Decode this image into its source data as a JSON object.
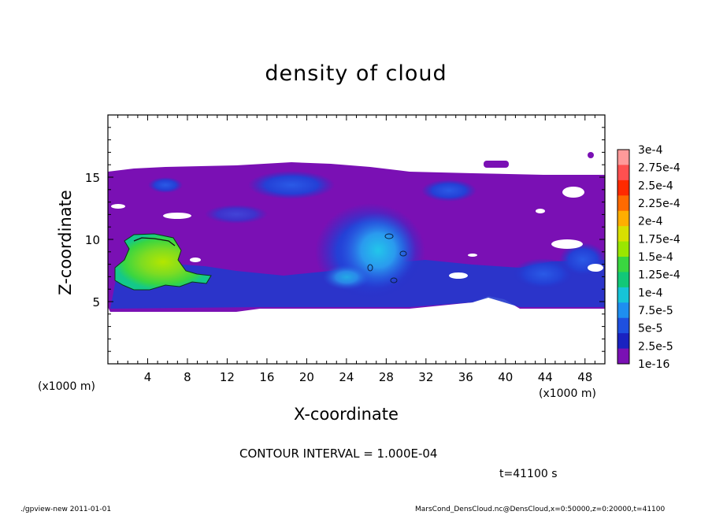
{
  "chart_data": {
    "type": "heatmap",
    "title": "density of cloud",
    "xlabel": "X-coordinate",
    "ylabel": "Z-coordinate",
    "x_unit_label": "(x1000 m)",
    "x_unit_label_right": "(x1000 m)",
    "xlim": [
      0,
      50
    ],
    "ylim": [
      0,
      20
    ],
    "x_ticks": [
      4,
      8,
      12,
      16,
      20,
      24,
      28,
      32,
      36,
      40,
      44,
      48
    ],
    "y_ticks": [
      5,
      10,
      15
    ],
    "colorbar": {
      "labels": [
        "3e-4",
        "2.75e-4",
        "2.5e-4",
        "2.25e-4",
        "2e-4",
        "1.75e-4",
        "1.5e-4",
        "1.25e-4",
        "1e-4",
        "7.5e-5",
        "5e-5",
        "2.5e-5",
        "1e-16"
      ],
      "colors": [
        "#ff9a9a",
        "#ff5050",
        "#ff2a00",
        "#ff6a00",
        "#ffae00",
        "#d8e000",
        "#9ae600",
        "#3ad640",
        "#12c878",
        "#16c4d8",
        "#1e8ef0",
        "#1e50e0",
        "#1a22c0",
        "#7a10b4"
      ]
    },
    "series": [
      {
        "x": 2,
        "z": 8,
        "value": "1.5e-4"
      },
      {
        "x": 27,
        "z": 9,
        "value": "7.5e-5"
      },
      {
        "x": 18,
        "z": 13,
        "value": "5e-5"
      }
    ]
  },
  "annotations": {
    "contour": "CONTOUR INTERVAL = 1.000E-04",
    "time": "t=41100 s",
    "footer_left": "./gpview-new   2011-01-01",
    "footer_right": "MarsCond_DensCloud.nc@DensCloud,x=0:50000,z=0:20000,t=41100"
  }
}
